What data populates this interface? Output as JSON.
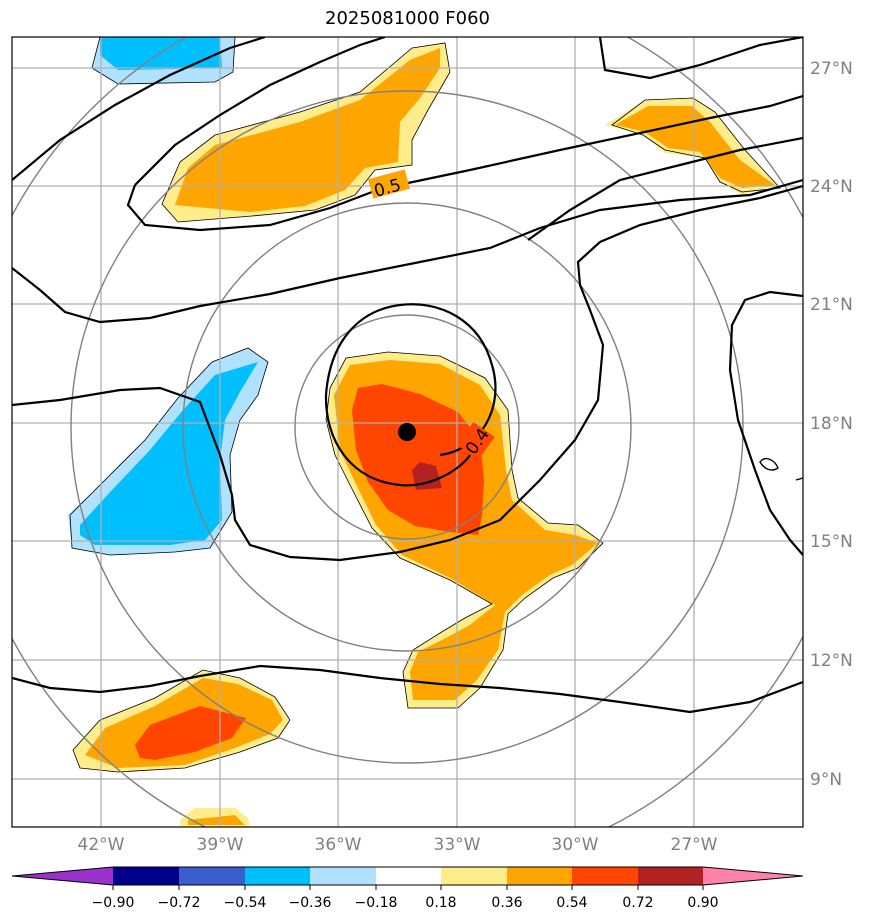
{
  "title": "2025081000 F060",
  "map": {
    "lat_labels": [
      "27°N",
      "24°N",
      "21°N",
      "18°N",
      "15°N",
      "12°N",
      "9°N"
    ],
    "lon_labels": [
      "42°W",
      "39°W",
      "36°W",
      "33°W",
      "30°W",
      "27°W"
    ],
    "storm_center": {
      "lon": "34.3°W",
      "lat": "17.8°N"
    },
    "contour_labels": [
      "0.5",
      "0.4"
    ]
  },
  "colorbar": {
    "ticks": [
      "−0.90",
      "−0.72",
      "−0.54",
      "−0.36",
      "−0.18",
      "0.18",
      "0.36",
      "0.54",
      "0.72",
      "0.90"
    ],
    "colors": [
      "#9932cc",
      "#00008b",
      "#3a5fcd",
      "#00bfff",
      "#b0e2ff",
      "#ffffff",
      "#ffec8b",
      "#ffa500",
      "#ff4500",
      "#b22222",
      "#ff82ab"
    ]
  }
}
